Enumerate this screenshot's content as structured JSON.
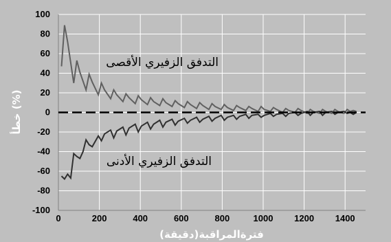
{
  "chart_data": {
    "type": "line",
    "xlabel": "فترةالمراقبة(دقيقة)",
    "ylabel": "خطأ (%)",
    "xlim": [
      0,
      1500
    ],
    "ylim": [
      -100,
      100
    ],
    "xticks": [
      0,
      200,
      400,
      600,
      800,
      1000,
      1200,
      1400
    ],
    "yticks": [
      -100,
      -80,
      -60,
      -40,
      -20,
      0,
      20,
      40,
      60,
      80,
      100
    ],
    "x_tick_labels": [
      "0",
      "200",
      "400",
      "600",
      "800",
      "1000",
      "1200",
      "1400"
    ],
    "y_tick_labels": [
      "-100",
      "-80",
      "-60",
      "-40",
      "-20",
      "0",
      "20",
      "40",
      "60",
      "80",
      "100"
    ],
    "grid": true,
    "annotations": [
      {
        "text": "التدفق الزفيري الأقصى",
        "x": 270,
        "y": 51
      },
      {
        "text": "التدفق الزفيري الأدنى",
        "x": 270,
        "y": -48
      }
    ],
    "series": [
      {
        "name": "التدفق الزفيري الأقصى",
        "style": "solid",
        "color": "#606060",
        "x": [
          15,
          30,
          45,
          75,
          90,
          105,
          135,
          150,
          165,
          195,
          210,
          225,
          255,
          270,
          285,
          315,
          330,
          345,
          375,
          390,
          405,
          435,
          450,
          465,
          495,
          510,
          525,
          555,
          570,
          585,
          615,
          630,
          645,
          675,
          690,
          705,
          735,
          750,
          765,
          795,
          810,
          825,
          855,
          870,
          885,
          915,
          930,
          945,
          975,
          990,
          1005,
          1035,
          1050,
          1065,
          1095,
          1110,
          1125,
          1155,
          1170,
          1185,
          1215,
          1230,
          1245,
          1275,
          1290,
          1305,
          1335,
          1350,
          1365,
          1395,
          1410,
          1425,
          1440,
          1455
        ],
        "y": [
          47,
          89,
          72,
          30,
          53,
          41,
          23,
          39,
          31,
          18,
          30,
          23,
          14,
          23,
          18,
          11,
          19,
          15,
          9,
          17,
          13,
          8,
          15,
          11,
          7,
          14,
          10,
          6,
          12,
          9,
          5,
          11,
          8,
          4,
          10,
          7,
          3,
          9,
          6,
          3,
          8,
          5,
          2,
          7,
          5,
          2,
          6,
          4,
          1,
          6,
          3,
          1,
          5,
          3,
          0,
          4,
          2,
          0,
          4,
          2,
          -1,
          3,
          1,
          -1,
          3,
          1,
          -1,
          3,
          1,
          -1,
          3,
          1,
          2,
          1
        ]
      },
      {
        "name": "التدفق الزفيري الأدنى",
        "style": "solid",
        "color": "#303030",
        "x": [
          15,
          30,
          45,
          60,
          75,
          90,
          105,
          120,
          135,
          150,
          165,
          195,
          210,
          225,
          255,
          270,
          285,
          315,
          330,
          345,
          375,
          390,
          405,
          435,
          450,
          465,
          495,
          510,
          525,
          555,
          570,
          585,
          615,
          630,
          645,
          675,
          690,
          705,
          735,
          750,
          765,
          795,
          810,
          825,
          855,
          870,
          885,
          915,
          930,
          945,
          975,
          990,
          1005,
          1035,
          1050,
          1065,
          1095,
          1110,
          1125,
          1155,
          1170,
          1185,
          1215,
          1230,
          1245,
          1275,
          1290,
          1305,
          1335,
          1350,
          1365,
          1395,
          1410,
          1425,
          1440,
          1455
        ],
        "y": [
          -65,
          -68,
          -63,
          -67,
          -42,
          -45,
          -47,
          -40,
          -28,
          -33,
          -35,
          -24,
          -29,
          -22,
          -18,
          -26,
          -19,
          -15,
          -23,
          -16,
          -12,
          -20,
          -14,
          -10,
          -17,
          -12,
          -8,
          -15,
          -10,
          -7,
          -13,
          -9,
          -6,
          -11,
          -8,
          -5,
          -10,
          -7,
          -4,
          -9,
          -6,
          -3,
          -8,
          -5,
          -3,
          -7,
          -4,
          -2,
          -6,
          -3,
          -2,
          -5,
          -3,
          -1,
          -4,
          -2,
          -1,
          -4,
          -1,
          0,
          -3,
          -1,
          1,
          -3,
          0,
          1,
          -3,
          0,
          1,
          -2,
          0,
          1,
          -1,
          0,
          -2,
          0
        ]
      },
      {
        "name": "",
        "style": "dashed",
        "color": "#000000",
        "x": [
          0,
          1500
        ],
        "y": [
          0,
          0
        ]
      }
    ]
  }
}
